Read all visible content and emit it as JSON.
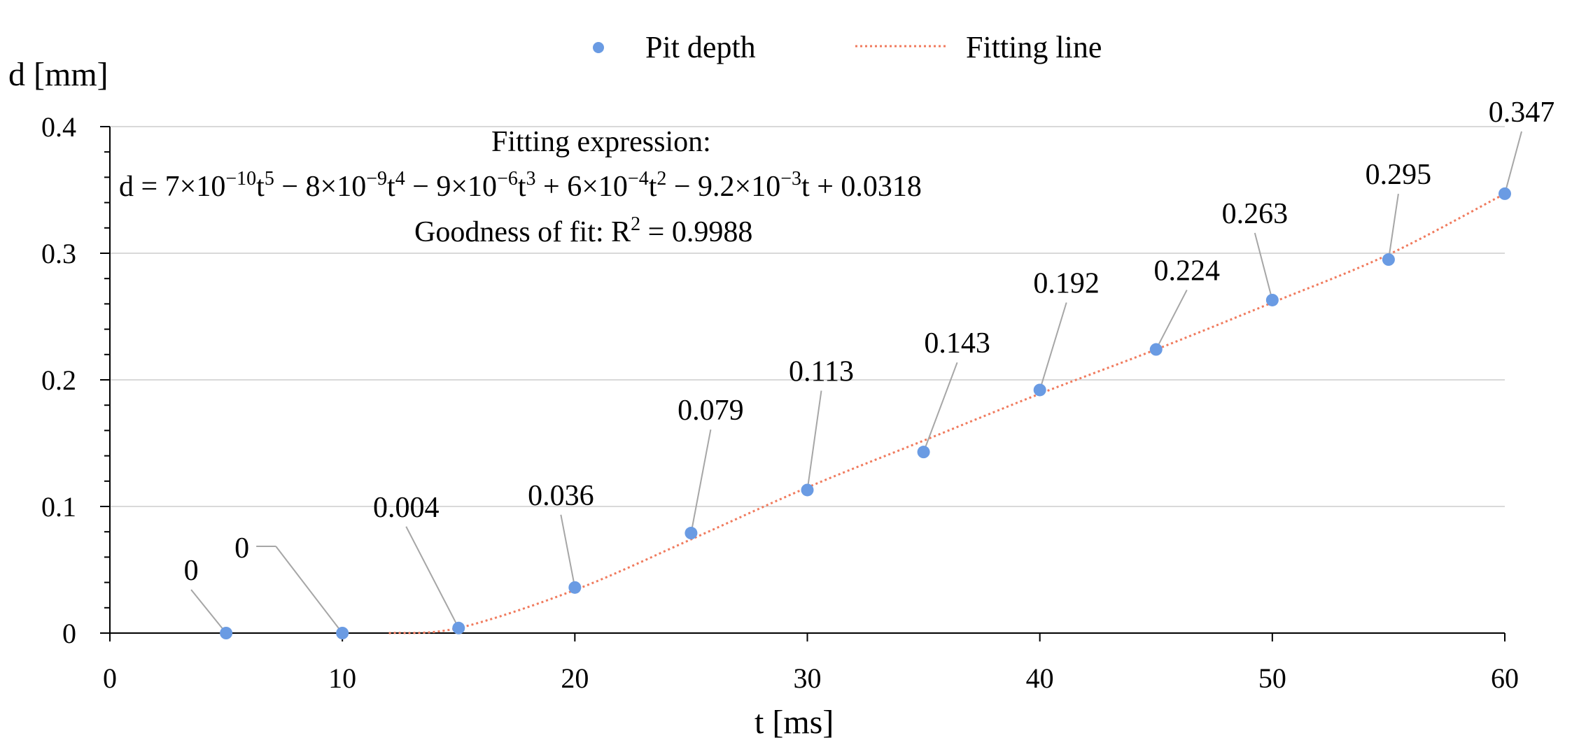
{
  "chart_data": {
    "type": "scatter",
    "xlabel": "t [ms]",
    "ylabel": "d [mm]",
    "xlim": [
      0,
      60
    ],
    "ylim": [
      0,
      0.4
    ],
    "x_ticks": [
      "0",
      "10",
      "20",
      "30",
      "40",
      "50",
      "60"
    ],
    "y_ticks": [
      "0",
      "0.1",
      "0.2",
      "0.3",
      "0.4"
    ],
    "grid": "horizontal",
    "legend_position": "top",
    "series": [
      {
        "name": "Pit depth",
        "color": "#6a9be3",
        "marker": "circle",
        "x": [
          5,
          10,
          15,
          20,
          25,
          30,
          35,
          40,
          45,
          50,
          55,
          60
        ],
        "y": [
          0,
          0,
          0.004,
          0.036,
          0.079,
          0.113,
          0.143,
          0.192,
          0.224,
          0.263,
          0.295,
          0.347
        ],
        "labels": [
          "0",
          "0",
          "0.004",
          "0.036",
          "0.079",
          "0.113",
          "0.143",
          "0.192",
          "0.224",
          "0.263",
          "0.295",
          "0.347"
        ]
      },
      {
        "name": "Fitting line",
        "color": "#f07b5e",
        "style": "dotted",
        "x": [
          12,
          15,
          20,
          25,
          30,
          35,
          40,
          45,
          50,
          55,
          60
        ],
        "y": [
          0,
          0.004,
          0.034,
          0.074,
          0.115,
          0.152,
          0.189,
          0.224,
          0.261,
          0.299,
          0.347
        ]
      }
    ],
    "annotation": {
      "line1": "Fitting expression:",
      "eq": {
        "a": "d = 7×10",
        "a_sup": "−10",
        "b": "t",
        "b_sup": "5",
        "c": " − 8×10",
        "c_sup": "−9",
        "d": "t",
        "d_sup": "4",
        "e": " − 9×10",
        "e_sup": "−6",
        "f": "t",
        "f_sup": "3",
        "g": " + 6×10",
        "g_sup": "−4",
        "h": "t",
        "h_sup": "2",
        "i": " − 9.2×10",
        "i_sup": "−3",
        "j": "t + 0.0318"
      },
      "line3": "Goodness of fit: R",
      "line3_sup": "2",
      "line3_tail": " = 0.9988"
    }
  }
}
